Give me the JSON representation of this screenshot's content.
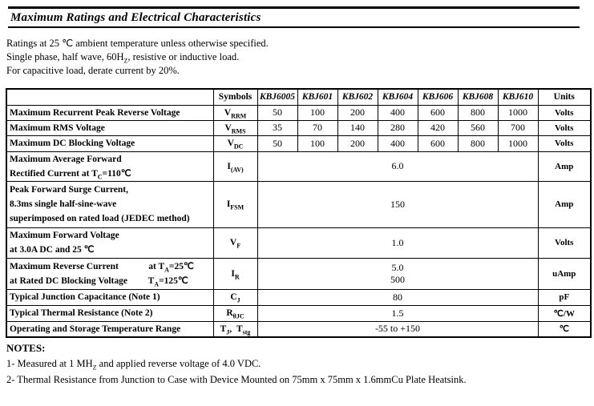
{
  "page": {
    "title": "Maximum Ratings and Electrical Characteristics"
  },
  "intro": {
    "lines": [
      [
        "Ratings at 25 ℃ ambient temperature unless otherwise specified."
      ],
      [
        "Single phase, half wave, 60H",
        {
          "sub": "Z"
        },
        ", resistive or inductive load."
      ],
      [
        "For capacitive load, derate current by 20%."
      ]
    ]
  },
  "table": {
    "symbols_header": "Symbols",
    "part_numbers": [
      "KBJ6005",
      "KBJ601",
      "KBJ602",
      "KBJ604",
      "KBJ606",
      "KBJ608",
      "KBJ610"
    ],
    "units_header": "Units",
    "rows": [
      {
        "name_lines": [
          [
            "Maximum Recurrent Peak Reverse Voltage"
          ]
        ],
        "symbol": [
          "V",
          {
            "sub": "RRM"
          }
        ],
        "values": [
          "50",
          "100",
          "200",
          "400",
          "600",
          "800",
          "1000"
        ],
        "unit": [
          "Volts"
        ]
      },
      {
        "name_lines": [
          [
            "Maximum RMS Voltage"
          ]
        ],
        "symbol": [
          "V",
          {
            "sub": "RMS"
          }
        ],
        "values": [
          "35",
          "70",
          "140",
          "280",
          "420",
          "560",
          "700"
        ],
        "unit": [
          "Volts"
        ]
      },
      {
        "name_lines": [
          [
            "Maximum DC Blocking Voltage"
          ]
        ],
        "symbol": [
          "V",
          {
            "sub": "DC"
          }
        ],
        "values": [
          "50",
          "100",
          "200",
          "400",
          "600",
          "800",
          "1000"
        ],
        "unit": [
          "Volts"
        ]
      },
      {
        "name_lines": [
          [
            "Maximum Average Forward"
          ],
          [
            "Rectified Current at T",
            {
              "sub": "C"
            },
            "=110℃"
          ]
        ],
        "symbol": [
          "I",
          {
            "sub": "(AV)"
          }
        ],
        "value_lines": [
          "6.0"
        ],
        "unit": [
          "Amp"
        ]
      },
      {
        "name_lines": [
          [
            "Peak Forward Surge Current,"
          ],
          [
            "8.3ms single half-sine-wave"
          ],
          [
            "superimposed on rated load (JEDEC method)"
          ]
        ],
        "symbol": [
          "I",
          {
            "sub": "FSM"
          }
        ],
        "value_lines": [
          "150"
        ],
        "unit": [
          "Amp"
        ]
      },
      {
        "name_lines": [
          [
            "Maximum Forward Voltage"
          ],
          [
            "at 3.0A DC and 25 ℃"
          ]
        ],
        "symbol": [
          "V",
          {
            "sub": "F"
          }
        ],
        "value_lines": [
          "1.0"
        ],
        "unit": [
          "Volts"
        ]
      },
      {
        "name_lines": [
          [
            "Maximum Reverse Current             at T",
            {
              "sub": "A"
            },
            "=25℃"
          ],
          [
            "at Rated DC Blocking Voltage         T",
            {
              "sub": "A"
            },
            "=125℃"
          ]
        ],
        "symbol": [
          "I",
          {
            "sub": "R"
          }
        ],
        "value_lines": [
          "5.0",
          "500"
        ],
        "unit": [
          "uAmp"
        ]
      },
      {
        "name_lines": [
          [
            "Typical Junction Capacitance (Note 1)"
          ]
        ],
        "symbol": [
          "C",
          {
            "sub": "J"
          }
        ],
        "value_lines": [
          "80"
        ],
        "unit": [
          "pF"
        ]
      },
      {
        "name_lines": [
          [
            "Typical Thermal Resistance (Note 2)"
          ]
        ],
        "symbol": [
          "R",
          {
            "sub": "θJC"
          }
        ],
        "value_lines": [
          "1.5"
        ],
        "unit": [
          "℃/W"
        ]
      },
      {
        "name_lines": [
          [
            "Operating and Storage Temperature Range"
          ]
        ],
        "symbol": [
          "T",
          {
            "sub": "J"
          },
          ",  T",
          {
            "sub": "stg"
          }
        ],
        "value_lines": [
          "-55 to +150"
        ],
        "unit": [
          "℃"
        ]
      }
    ]
  },
  "notes": {
    "heading": "NOTES:",
    "items": [
      [
        "1- Measured at 1 MH",
        {
          "sub": "Z"
        },
        " and applied reverse voltage of 4.0 VDC."
      ],
      [
        "2- Thermal Resistance from Junction to Case with Device Mounted on 75mm x 75mm x 1.6mmCu Plate Heatsink."
      ]
    ]
  }
}
